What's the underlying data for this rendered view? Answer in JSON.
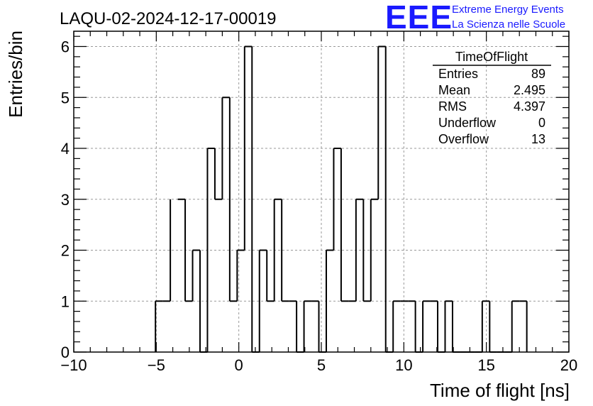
{
  "header": {
    "run_title": "LAQU-02-2024-12-17-00019",
    "logo_text": "EEE",
    "logo_line1": "Extreme Energy Events",
    "logo_line2": "La Scienza nelle Scuole"
  },
  "colors": {
    "logo_blue": "#1a1aff",
    "histogram": "#000000",
    "grid": "#999999",
    "background": "#ffffff"
  },
  "stats": {
    "title": "TimeOfFlight",
    "rows": [
      {
        "label": "Entries",
        "value": "89"
      },
      {
        "label": "Mean",
        "value": "2.495"
      },
      {
        "label": "RMS",
        "value": "4.397"
      },
      {
        "label": "Underflow",
        "value": "0"
      },
      {
        "label": "Overflow",
        "value": "13"
      }
    ]
  },
  "chart_data": {
    "type": "histogram",
    "title": "LAQU-02-2024-12-17-00019",
    "xlabel": "Time of flight [ns]",
    "ylabel": "Entries/bin",
    "xlim": [
      -10,
      20
    ],
    "ylim": [
      0,
      6.3
    ],
    "bin_width": 0.45,
    "grid": true,
    "x_ticks": [
      "−10",
      "−5",
      "0",
      "5",
      "10",
      "15",
      "20"
    ],
    "y_ticks": [
      "0",
      "1",
      "2",
      "3",
      "4",
      "5",
      "6"
    ],
    "bins": [
      {
        "x": -5.05,
        "count": 1
      },
      {
        "x": -4.6,
        "count": 1
      },
      {
        "x": -3.7,
        "count": 3
      },
      {
        "x": -3.25,
        "count": 1
      },
      {
        "x": -2.8,
        "count": 2
      },
      {
        "x": -2.35,
        "count": 0
      },
      {
        "x": -1.9,
        "count": 4
      },
      {
        "x": -1.45,
        "count": 3
      },
      {
        "x": -1.0,
        "count": 5
      },
      {
        "x": -0.55,
        "count": 1
      },
      {
        "x": -0.1,
        "count": 2
      },
      {
        "x": 0.35,
        "count": 6
      },
      {
        "x": 0.8,
        "count": 0
      },
      {
        "x": 1.25,
        "count": 2
      },
      {
        "x": 1.7,
        "count": 1
      },
      {
        "x": 2.15,
        "count": 3
      },
      {
        "x": 2.6,
        "count": 1
      },
      {
        "x": 3.05,
        "count": 1
      },
      {
        "x": 3.5,
        "count": 0
      },
      {
        "x": 3.95,
        "count": 1
      },
      {
        "x": 4.4,
        "count": 1
      },
      {
        "x": 4.85,
        "count": 0
      },
      {
        "x": 5.3,
        "count": 2
      },
      {
        "x": 5.75,
        "count": 4
      },
      {
        "x": 6.2,
        "count": 1
      },
      {
        "x": 6.65,
        "count": 1
      },
      {
        "x": 7.1,
        "count": 3
      },
      {
        "x": 7.55,
        "count": 1
      },
      {
        "x": 8.0,
        "count": 3
      },
      {
        "x": 8.45,
        "count": 6
      },
      {
        "x": 8.9,
        "count": 0
      },
      {
        "x": 9.35,
        "count": 1
      },
      {
        "x": 9.8,
        "count": 1
      },
      {
        "x": 10.25,
        "count": 1
      },
      {
        "x": 10.7,
        "count": 0
      },
      {
        "x": 11.15,
        "count": 1
      },
      {
        "x": 11.6,
        "count": 1
      },
      {
        "x": 12.05,
        "count": 0
      },
      {
        "x": 12.5,
        "count": 1
      },
      {
        "x": 12.95,
        "count": 0
      },
      {
        "x": 13.4,
        "count": 0
      },
      {
        "x": 13.85,
        "count": 0
      },
      {
        "x": 14.3,
        "count": 0
      },
      {
        "x": 14.75,
        "count": 1
      },
      {
        "x": 15.2,
        "count": 0
      },
      {
        "x": 15.65,
        "count": 0
      },
      {
        "x": 16.1,
        "count": 0
      },
      {
        "x": 16.55,
        "count": 1
      },
      {
        "x": 17.0,
        "count": 1
      }
    ]
  }
}
